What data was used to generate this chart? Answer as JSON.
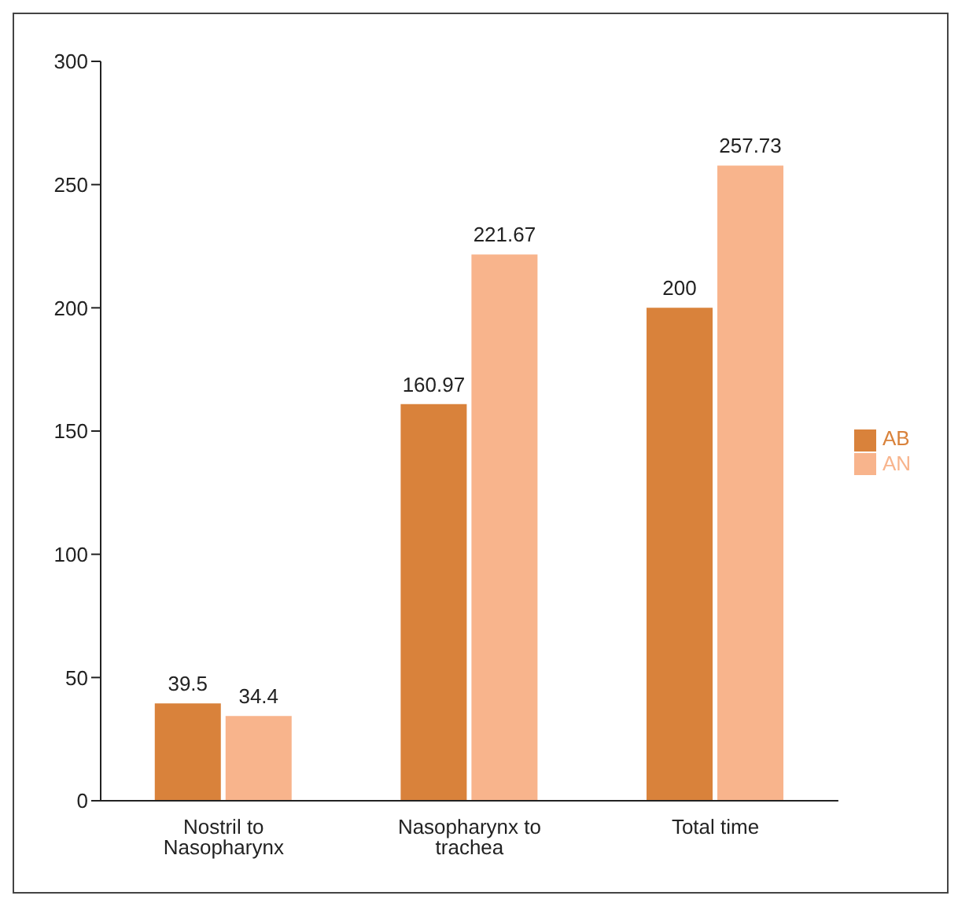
{
  "chart_data": {
    "type": "bar",
    "categories": [
      "Nostril to Nasopharynx",
      "Nasopharynx to trachea",
      "Total time"
    ],
    "series": [
      {
        "name": "AB",
        "color": "#d9823b",
        "values": [
          39.5,
          160.97,
          200
        ]
      },
      {
        "name": "AN",
        "color": "#f8b48c",
        "values": [
          34.4,
          221.67,
          257.73
        ]
      }
    ],
    "ylim": [
      0,
      300
    ],
    "yticks": [
      0,
      50,
      100,
      150,
      200,
      250,
      300
    ],
    "data_labels": true,
    "legend": "right",
    "grid": false
  }
}
